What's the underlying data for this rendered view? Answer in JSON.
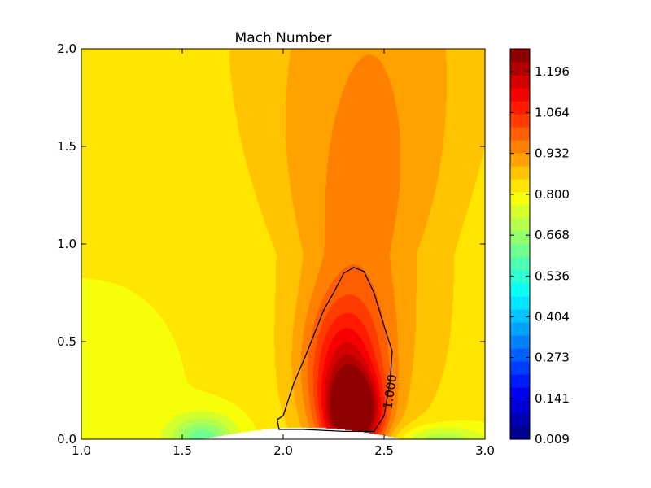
{
  "chart_data": {
    "type": "contour",
    "title": "Mach Number",
    "xlabel": "",
    "ylabel": "",
    "xlim": [
      1.0,
      3.0
    ],
    "ylim": [
      0.0,
      2.0
    ],
    "x_ticks": [
      "1.0",
      "1.5",
      "2.0",
      "2.5",
      "3.0"
    ],
    "y_ticks": [
      "0.0",
      "0.5",
      "1.0",
      "1.5",
      "2.0"
    ],
    "colormap": "jet",
    "colorbar": {
      "min": 0.009,
      "max": 1.27,
      "tick_values": [
        0.009,
        0.141,
        0.273,
        0.404,
        0.536,
        0.668,
        0.8,
        0.932,
        1.064,
        1.196
      ],
      "tick_labels": [
        "0.009",
        "0.141",
        "0.273",
        "0.404",
        "0.536",
        "0.668",
        "0.800",
        "0.932",
        "1.064",
        "1.196"
      ],
      "levels": 30
    },
    "contour_line": {
      "value": 1.0,
      "label": "1.000",
      "color": "#000000",
      "points": [
        [
          2.0,
          0.12
        ],
        [
          1.97,
          0.1
        ],
        [
          1.98,
          0.05
        ],
        [
          2.1,
          0.05
        ],
        [
          2.3,
          0.04
        ],
        [
          2.45,
          0.04
        ],
        [
          2.5,
          0.12
        ],
        [
          2.53,
          0.3
        ],
        [
          2.54,
          0.45
        ],
        [
          2.5,
          0.58
        ],
        [
          2.45,
          0.75
        ],
        [
          2.4,
          0.86
        ],
        [
          2.35,
          0.88
        ],
        [
          2.3,
          0.85
        ],
        [
          2.25,
          0.75
        ],
        [
          2.2,
          0.66
        ],
        [
          2.12,
          0.45
        ],
        [
          2.05,
          0.28
        ],
        [
          2.0,
          0.12
        ]
      ]
    },
    "field_summary": {
      "peak": {
        "x": 2.35,
        "y": 0.12,
        "value": 1.27
      },
      "low_regions": [
        {
          "x": 1.6,
          "y": 0.0,
          "value": 0.6
        },
        {
          "x": 2.75,
          "y": 0.0,
          "value": 0.7
        }
      ],
      "body_surface": "bump from x=1.6 to x=2.6 along y=0"
    }
  }
}
